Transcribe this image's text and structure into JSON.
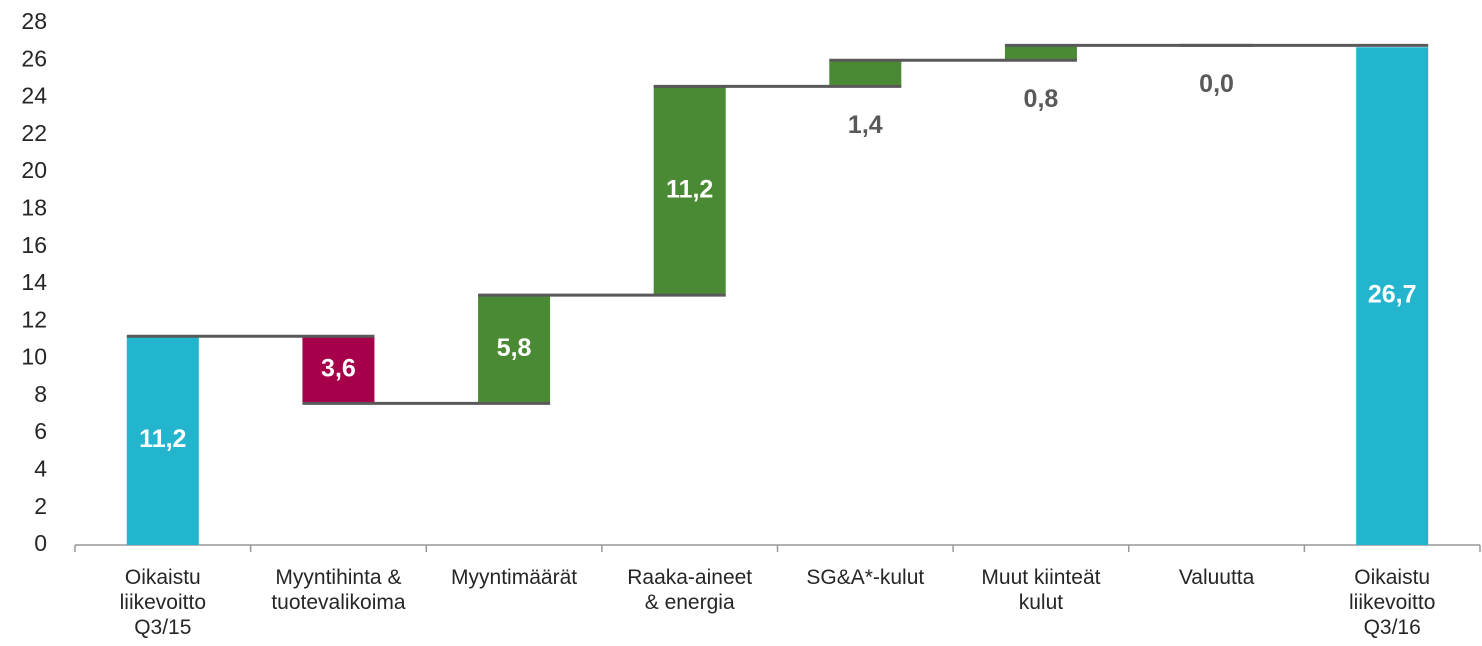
{
  "chart_data": {
    "type": "waterfall",
    "categories": [
      [
        "Oikaistu",
        "liikevoitto",
        "Q3/15"
      ],
      [
        "Myyntihinta &",
        "tuotevalikoima"
      ],
      [
        "Myyntimäärät"
      ],
      [
        "Raaka-aineet",
        "& energia"
      ],
      [
        "SG&A*-kulut"
      ],
      [
        "Muut kiinteät",
        "kulut"
      ],
      [
        "Valuutta"
      ],
      [
        "Oikaistu",
        "liikevoitto",
        "Q3/16"
      ]
    ],
    "values": [
      11.2,
      -3.6,
      5.8,
      11.2,
      1.4,
      0.8,
      0.0,
      26.7
    ],
    "value_labels": [
      "11,2",
      "3,6",
      "5,8",
      "11,2",
      "1,4",
      "0,8",
      "0,0",
      "26,7"
    ],
    "measure": [
      "absolute",
      "relative",
      "relative",
      "relative",
      "relative",
      "relative",
      "relative",
      "absolute"
    ],
    "colors": {
      "total": "#23b5ce",
      "increase": "#4a8a34",
      "decrease": "#a6004a"
    },
    "ylim": [
      0,
      28
    ],
    "yticks": [
      0,
      2,
      4,
      6,
      8,
      10,
      12,
      14,
      16,
      18,
      20,
      22,
      24,
      26,
      28
    ],
    "grid": false
  }
}
